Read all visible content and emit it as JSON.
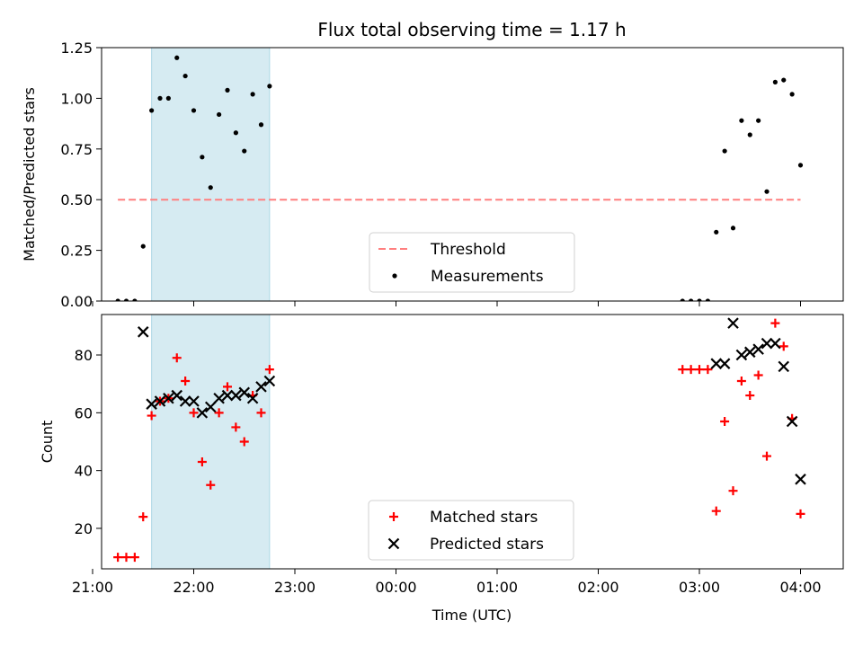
{
  "chart_data": {
    "type": "scatter",
    "title": "Flux total observing time = 1.17 h",
    "xlabel": "Time (UTC)",
    "x_ticks": [
      "21:00",
      "22:00",
      "23:00",
      "00:00",
      "01:00",
      "02:00",
      "03:00",
      "04:00"
    ],
    "xlim": [
      "21:00",
      "04:20"
    ],
    "shaded_interval": {
      "start": "21:35",
      "end": "22:45",
      "color": "#add8e6"
    },
    "panels": [
      {
        "id": "ratio",
        "ylabel": "Matched/Predicted stars",
        "ylim": [
          0,
          1.25
        ],
        "y_ticks": [
          "0.00",
          "0.25",
          "0.50",
          "0.75",
          "1.00",
          "1.25"
        ],
        "legend": {
          "position": "lower-center"
        },
        "series": [
          {
            "name": "Threshold",
            "type": "line",
            "style": "dashed",
            "color": "#ff7f7f",
            "points": [
              [
                "21:15",
                0.5
              ],
              [
                "04:00",
                0.5
              ]
            ]
          },
          {
            "name": "Measurements",
            "type": "scatter",
            "marker": "dot",
            "color": "#000000",
            "points": [
              [
                "21:15",
                0.0
              ],
              [
                "21:20",
                0.0
              ],
              [
                "21:25",
                0.0
              ],
              [
                "21:30",
                0.27
              ],
              [
                "21:35",
                0.94
              ],
              [
                "21:40",
                1.0
              ],
              [
                "21:45",
                1.0
              ],
              [
                "21:50",
                1.2
              ],
              [
                "21:55",
                1.11
              ],
              [
                "22:00",
                0.94
              ],
              [
                "22:05",
                0.71
              ],
              [
                "22:10",
                0.56
              ],
              [
                "22:15",
                0.92
              ],
              [
                "22:20",
                1.04
              ],
              [
                "22:25",
                0.83
              ],
              [
                "22:30",
                0.74
              ],
              [
                "22:35",
                1.02
              ],
              [
                "22:40",
                0.87
              ],
              [
                "22:45",
                1.06
              ],
              [
                "02:50",
                0.0
              ],
              [
                "02:55",
                0.0
              ],
              [
                "03:00",
                0.0
              ],
              [
                "03:05",
                0.0
              ],
              [
                "03:10",
                0.34
              ],
              [
                "03:15",
                0.74
              ],
              [
                "03:20",
                0.36
              ],
              [
                "03:25",
                0.89
              ],
              [
                "03:30",
                0.82
              ],
              [
                "03:35",
                0.89
              ],
              [
                "03:40",
                0.54
              ],
              [
                "03:45",
                1.08
              ],
              [
                "03:50",
                1.09
              ],
              [
                "03:55",
                1.02
              ],
              [
                "04:00",
                0.67
              ]
            ]
          }
        ]
      },
      {
        "id": "count",
        "ylabel": "Count",
        "ylim": [
          6,
          94
        ],
        "y_ticks": [
          "20",
          "40",
          "60",
          "80"
        ],
        "legend": {
          "position": "lower-center"
        },
        "series": [
          {
            "name": "Matched stars",
            "type": "scatter",
            "marker": "plus",
            "color": "#ff0000",
            "points": [
              [
                "21:15",
                10
              ],
              [
                "21:20",
                10
              ],
              [
                "21:25",
                10
              ],
              [
                "21:30",
                24
              ],
              [
                "21:35",
                59
              ],
              [
                "21:40",
                64
              ],
              [
                "21:45",
                65
              ],
              [
                "21:50",
                79
              ],
              [
                "21:55",
                71
              ],
              [
                "22:00",
                60
              ],
              [
                "22:05",
                43
              ],
              [
                "22:10",
                35
              ],
              [
                "22:15",
                60
              ],
              [
                "22:20",
                69
              ],
              [
                "22:25",
                55
              ],
              [
                "22:30",
                50
              ],
              [
                "22:35",
                66
              ],
              [
                "22:40",
                60
              ],
              [
                "22:45",
                75
              ],
              [
                "02:50",
                75
              ],
              [
                "02:55",
                75
              ],
              [
                "03:00",
                75
              ],
              [
                "03:05",
                75
              ],
              [
                "03:10",
                26
              ],
              [
                "03:15",
                57
              ],
              [
                "03:20",
                33
              ],
              [
                "03:25",
                71
              ],
              [
                "03:30",
                66
              ],
              [
                "03:35",
                73
              ],
              [
                "03:40",
                45
              ],
              [
                "03:45",
                91
              ],
              [
                "03:50",
                83
              ],
              [
                "03:55",
                58
              ],
              [
                "04:00",
                25
              ]
            ]
          },
          {
            "name": "Predicted stars",
            "type": "scatter",
            "marker": "x",
            "color": "#000000",
            "points": [
              [
                "21:30",
                88
              ],
              [
                "21:35",
                63
              ],
              [
                "21:40",
                64
              ],
              [
                "21:45",
                65
              ],
              [
                "21:50",
                66
              ],
              [
                "21:55",
                64
              ],
              [
                "22:00",
                64
              ],
              [
                "22:05",
                60
              ],
              [
                "22:10",
                62
              ],
              [
                "22:15",
                65
              ],
              [
                "22:20",
                66
              ],
              [
                "22:25",
                66
              ],
              [
                "22:30",
                67
              ],
              [
                "22:35",
                65
              ],
              [
                "22:40",
                69
              ],
              [
                "22:45",
                71
              ],
              [
                "03:10",
                77
              ],
              [
                "03:15",
                77
              ],
              [
                "03:20",
                91
              ],
              [
                "03:25",
                80
              ],
              [
                "03:30",
                81
              ],
              [
                "03:35",
                82
              ],
              [
                "03:40",
                84
              ],
              [
                "03:45",
                84
              ],
              [
                "03:50",
                76
              ],
              [
                "03:55",
                57
              ],
              [
                "04:00",
                37
              ]
            ]
          }
        ]
      }
    ]
  }
}
